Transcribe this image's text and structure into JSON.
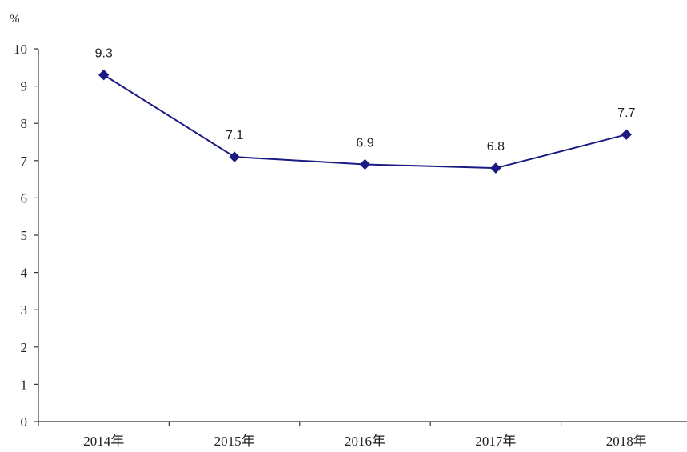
{
  "chart_data": {
    "type": "line",
    "title": "",
    "xlabel": "",
    "ylabel": "%",
    "categories": [
      "2014年",
      "2015年",
      "2016年",
      "2017年",
      "2018年"
    ],
    "series": [
      {
        "values": [
          9.3,
          7.1,
          6.9,
          6.8,
          7.7
        ],
        "data_labels": [
          "9.3",
          "7.1",
          "6.9",
          "6.8",
          "7.7"
        ],
        "color": "#1a1a80",
        "marker": "diamond"
      }
    ],
    "ylim": [
      0,
      10
    ],
    "yticks": [
      0,
      1,
      2,
      3,
      4,
      5,
      6,
      7,
      8,
      9,
      10
    ],
    "grid": false,
    "legend": "none"
  }
}
